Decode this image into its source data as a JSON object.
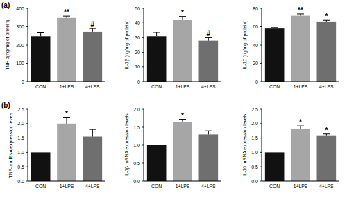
{
  "chart_data": [
    {
      "type": "bar",
      "panel_label": "(a)",
      "y_label": "TNF-α(ng/mg of protein)",
      "categories": [
        "CON",
        "1+LPS",
        "4+LPS"
      ],
      "values": [
        248,
        348,
        272
      ],
      "errors": [
        18,
        10,
        18
      ],
      "colors": [
        "#111111",
        "#a6a6a6",
        "#6f6f6f"
      ],
      "ylim": [
        0,
        400
      ],
      "yticks": [
        0,
        100,
        200,
        300,
        400
      ],
      "annotations": [
        {
          "category": "1+LPS",
          "text": "**"
        },
        {
          "category": "4+LPS",
          "text": "#"
        }
      ]
    },
    {
      "type": "bar",
      "y_label": "IL-1β (ng/mg of protein)",
      "categories": [
        "CON",
        "1+LPS",
        "4+LPS"
      ],
      "values": [
        31,
        42,
        28
      ],
      "errors": [
        2.5,
        2.5,
        2
      ],
      "colors": [
        "#111111",
        "#a6a6a6",
        "#6f6f6f"
      ],
      "ylim": [
        0,
        50
      ],
      "yticks": [
        0,
        10,
        20,
        30,
        40,
        50
      ],
      "annotations": [
        {
          "category": "1+LPS",
          "text": "*"
        },
        {
          "category": "4+LPS",
          "text": "#"
        }
      ]
    },
    {
      "type": "bar",
      "y_label": "IL-10 (ng/mg of protein)",
      "categories": [
        "CON",
        "1+LPS",
        "4+LPS"
      ],
      "values": [
        58,
        72,
        65
      ],
      "errors": [
        1,
        2,
        2
      ],
      "colors": [
        "#111111",
        "#a6a6a6",
        "#6f6f6f"
      ],
      "ylim": [
        0,
        80
      ],
      "yticks": [
        0,
        20,
        40,
        60,
        80
      ],
      "annotations": [
        {
          "category": "1+LPS",
          "text": "**"
        },
        {
          "category": "4+LPS",
          "text": "*"
        }
      ]
    },
    {
      "type": "bar",
      "panel_label": "(b)",
      "y_label": "TNF-α mRNA expression levels",
      "categories": [
        "CON",
        "1+LPS",
        "4+LPS"
      ],
      "values": [
        1.0,
        2.0,
        1.55
      ],
      "errors": [
        0,
        0.2,
        0.25
      ],
      "colors": [
        "#111111",
        "#a6a6a6",
        "#6f6f6f"
      ],
      "ylim": [
        0,
        2.5
      ],
      "yticks": [
        {
          "value": 0,
          "label": "0.0"
        },
        0.5,
        {
          "value": 1,
          "label": "1.0"
        },
        1.5,
        {
          "value": 2,
          "label": "2.0"
        },
        2.5
      ],
      "annotations": [
        {
          "category": "1+LPS",
          "text": "*"
        }
      ]
    },
    {
      "type": "bar",
      "y_label": "IL-1β mRNA expression levels",
      "categories": [
        "CON",
        "1+LPS",
        "4+LPS"
      ],
      "values": [
        1.0,
        1.65,
        1.3
      ],
      "errors": [
        0,
        0.07,
        0.1
      ],
      "colors": [
        "#111111",
        "#a6a6a6",
        "#6f6f6f"
      ],
      "ylim": [
        0,
        2.0
      ],
      "yticks": [
        {
          "value": 0,
          "label": "0.0"
        },
        0.5,
        {
          "value": 1,
          "label": "1.0"
        },
        1.5,
        {
          "value": 2,
          "label": "2.0"
        }
      ],
      "annotations": [
        {
          "category": "1+LPS",
          "text": "*"
        }
      ]
    },
    {
      "type": "bar",
      "y_label": "IL-10 mRNA expression levels",
      "categories": [
        "CON",
        "1+LPS",
        "4+LPS"
      ],
      "values": [
        1.0,
        1.82,
        1.57
      ],
      "errors": [
        0,
        0.1,
        0.07
      ],
      "colors": [
        "#111111",
        "#a6a6a6",
        "#6f6f6f"
      ],
      "ylim": [
        0,
        2.5
      ],
      "yticks": [
        {
          "value": 0,
          "label": "0.0"
        },
        0.5,
        {
          "value": 1,
          "label": "1.0"
        },
        1.5,
        {
          "value": 2,
          "label": "2.0"
        },
        2.5
      ],
      "annotations": [
        {
          "category": "1+LPS",
          "text": "*"
        },
        {
          "category": "4+LPS",
          "text": "*"
        }
      ]
    }
  ]
}
